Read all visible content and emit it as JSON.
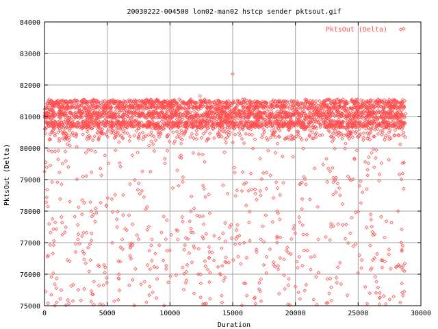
{
  "chart_data": {
    "type": "scatter",
    "title": "20030222-004500 lon02-man02 hstcp sender pktsout.gif",
    "xlabel": "Duration",
    "ylabel": "PktsOut (Delta)",
    "xlim": [
      0,
      30000
    ],
    "ylim": [
      75000,
      84000
    ],
    "x_ticks": [
      0,
      5000,
      10000,
      15000,
      20000,
      25000,
      30000
    ],
    "y_ticks": [
      75000,
      76000,
      77000,
      78000,
      79000,
      80000,
      81000,
      82000,
      83000,
      84000
    ],
    "grid": true,
    "legend_position": "top-right",
    "series": [
      {
        "name": "PktsOut (Delta)",
        "color": "#ff5050",
        "marker": "diamond",
        "x_range": [
          0,
          28800
        ],
        "main_band_y": [
          80600,
          81550
        ],
        "dense_lines_y": [
          80700,
          80800,
          81000,
          81100,
          81300,
          81450
        ],
        "sparse_y_range": [
          75000,
          80400
        ],
        "sample_points": [
          {
            "x": 15000,
            "y": 82350
          },
          {
            "x": 12400,
            "y": 81650
          },
          {
            "x": 28400,
            "y": 83760
          },
          {
            "x": 100,
            "y": 79550
          },
          {
            "x": 1900,
            "y": 79400
          },
          {
            "x": 3300,
            "y": 79850
          },
          {
            "x": 7600,
            "y": 78550
          },
          {
            "x": 25200,
            "y": 78950
          },
          {
            "x": 15200,
            "y": 76950
          },
          {
            "x": 20300,
            "y": 76550
          }
        ]
      }
    ]
  }
}
